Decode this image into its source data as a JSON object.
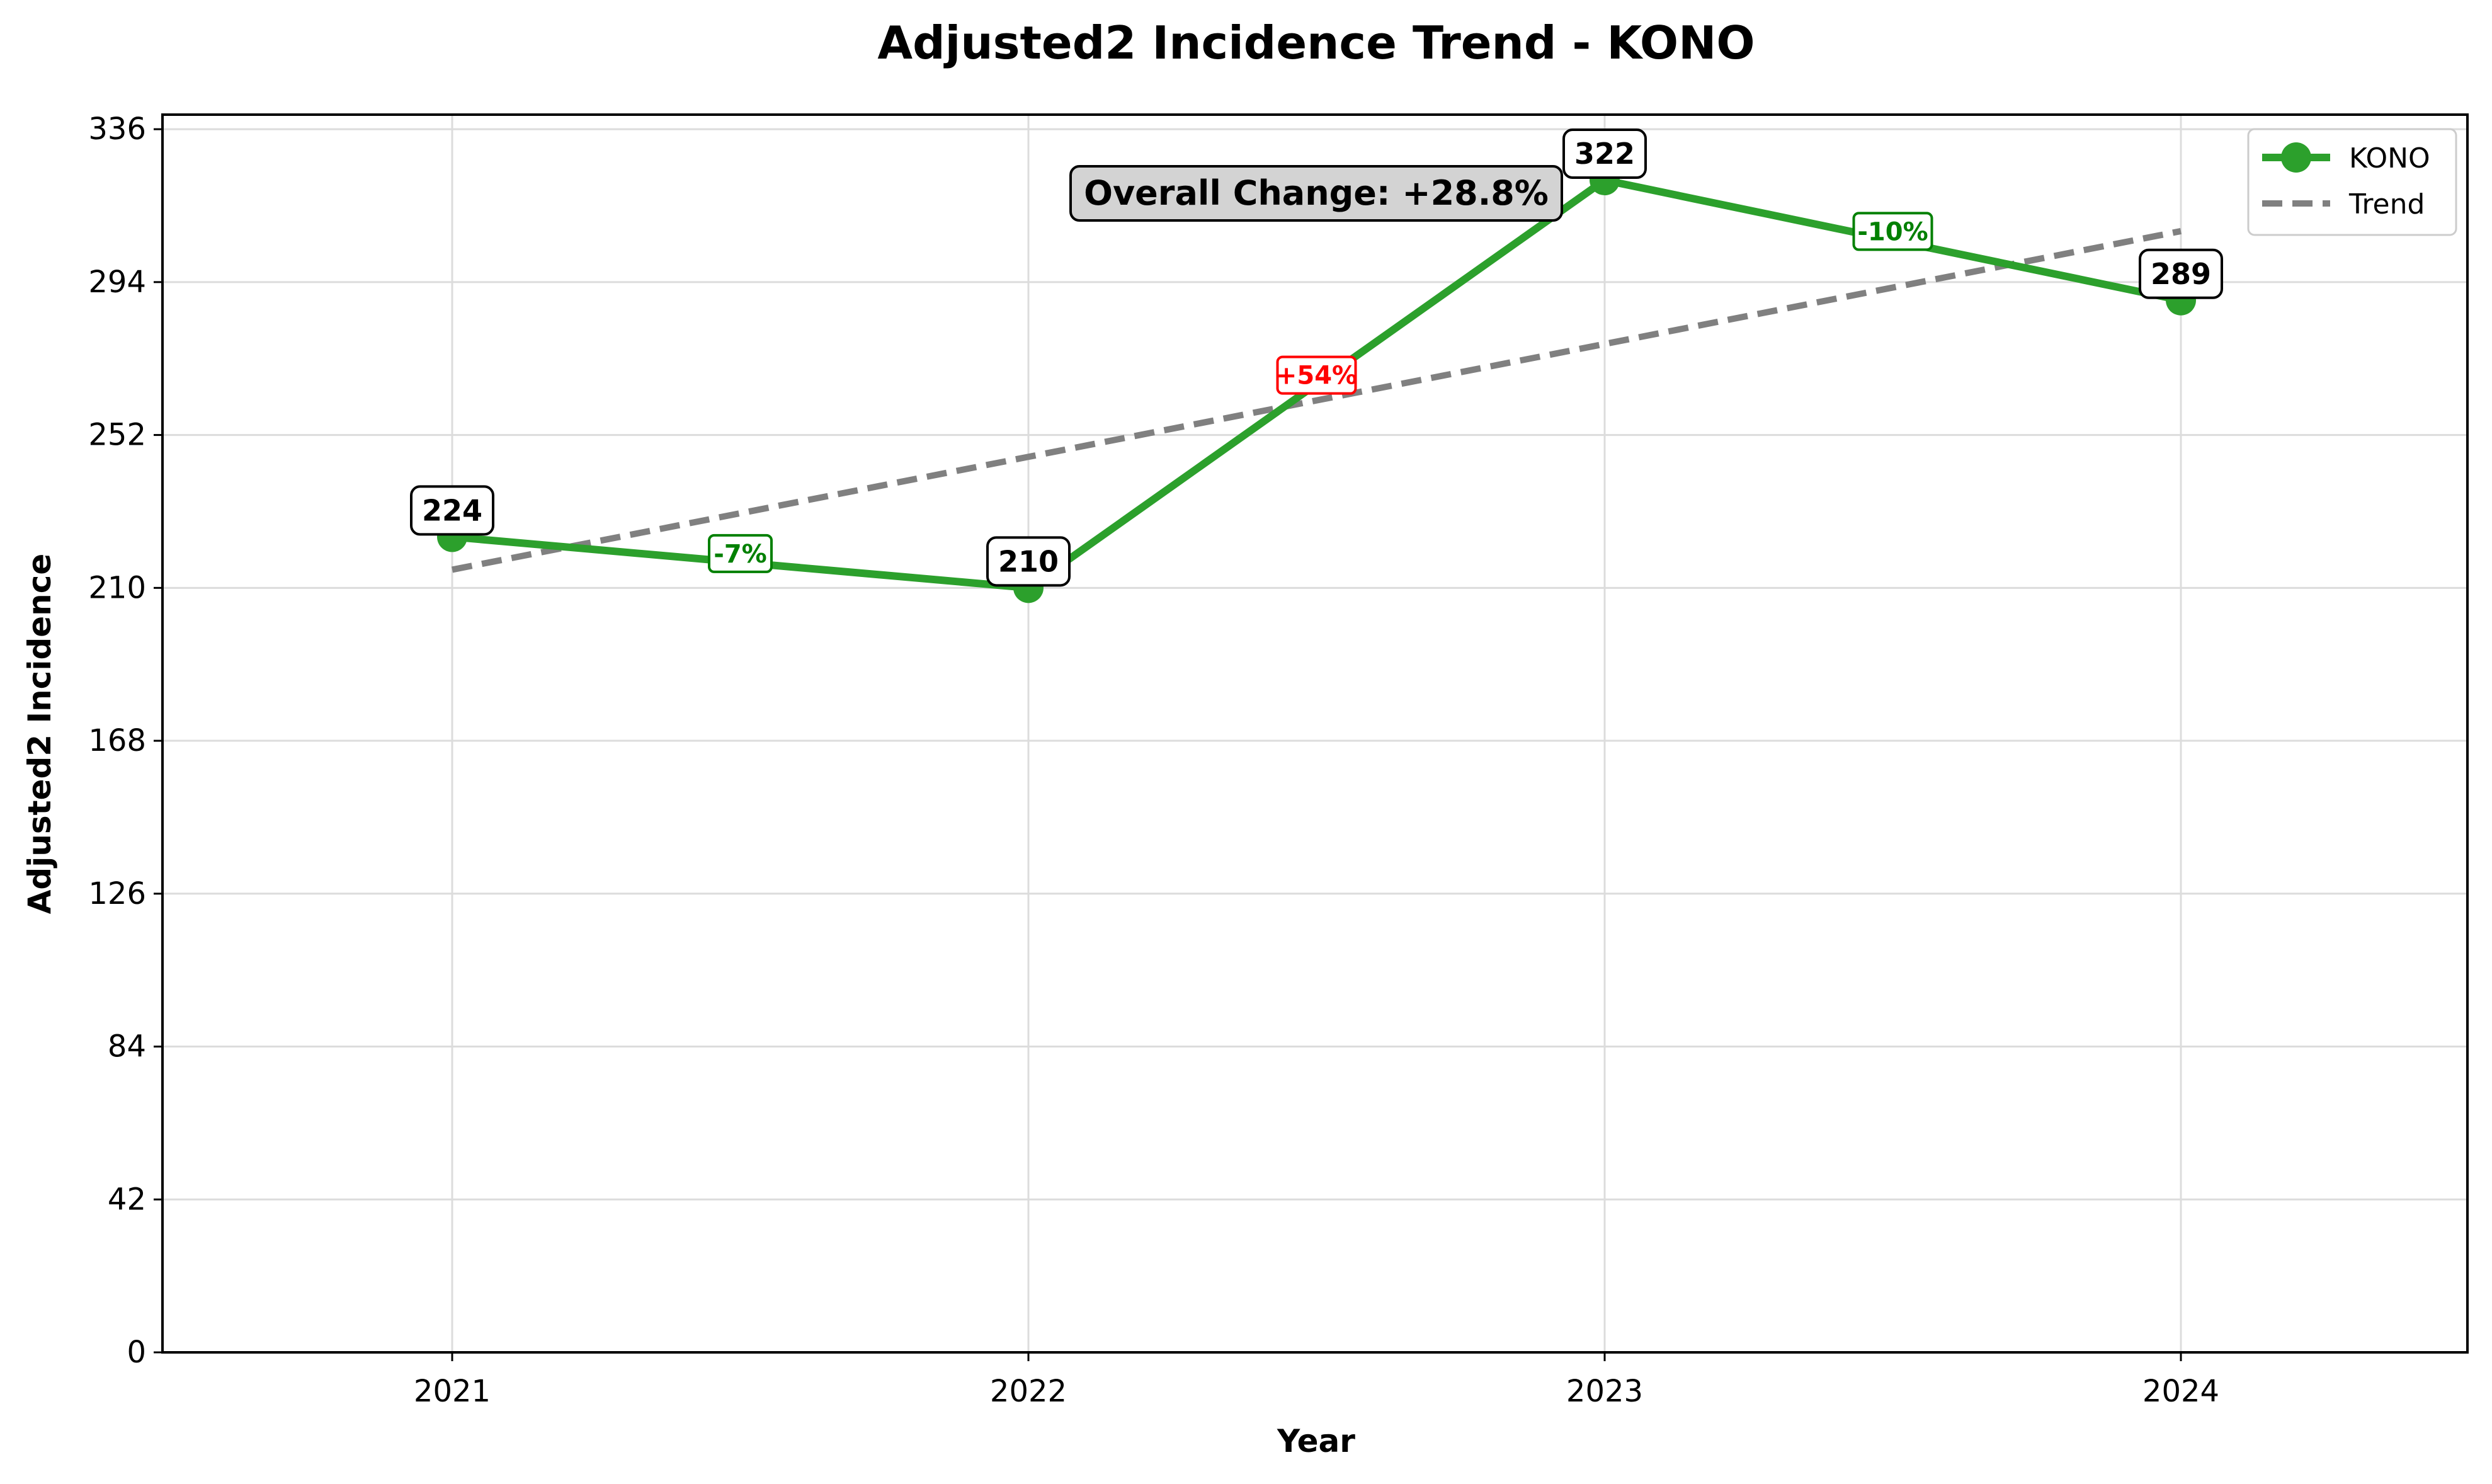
{
  "chart_data": {
    "type": "line",
    "title": "Adjusted2 Incidence Trend - KONO",
    "xlabel": "Year",
    "ylabel": "Adjusted2 Incidence",
    "categories": [
      "2021",
      "2022",
      "2023",
      "2024"
    ],
    "y_ticks": [
      "0",
      "42",
      "84",
      "126",
      "168",
      "210",
      "252",
      "294",
      "336"
    ],
    "ylim": [
      0,
      340
    ],
    "grid": true,
    "legend_position": "top-right",
    "series": [
      {
        "name": "KONO",
        "values": [
          224,
          210,
          322,
          289
        ],
        "value_labels": [
          "224",
          "210",
          "322",
          "289"
        ],
        "color": "#2ca02c"
      },
      {
        "name": "Trend",
        "values": [
          215,
          246,
          277,
          308
        ],
        "color": "#808080",
        "style": "dashed"
      }
    ],
    "changes": [
      {
        "label": "-7%",
        "color": "#008000"
      },
      {
        "label": "+54%",
        "color": "#ff0000"
      },
      {
        "label": "-10%",
        "color": "#008000"
      }
    ],
    "summary": "Overall Change: +28.8%"
  }
}
